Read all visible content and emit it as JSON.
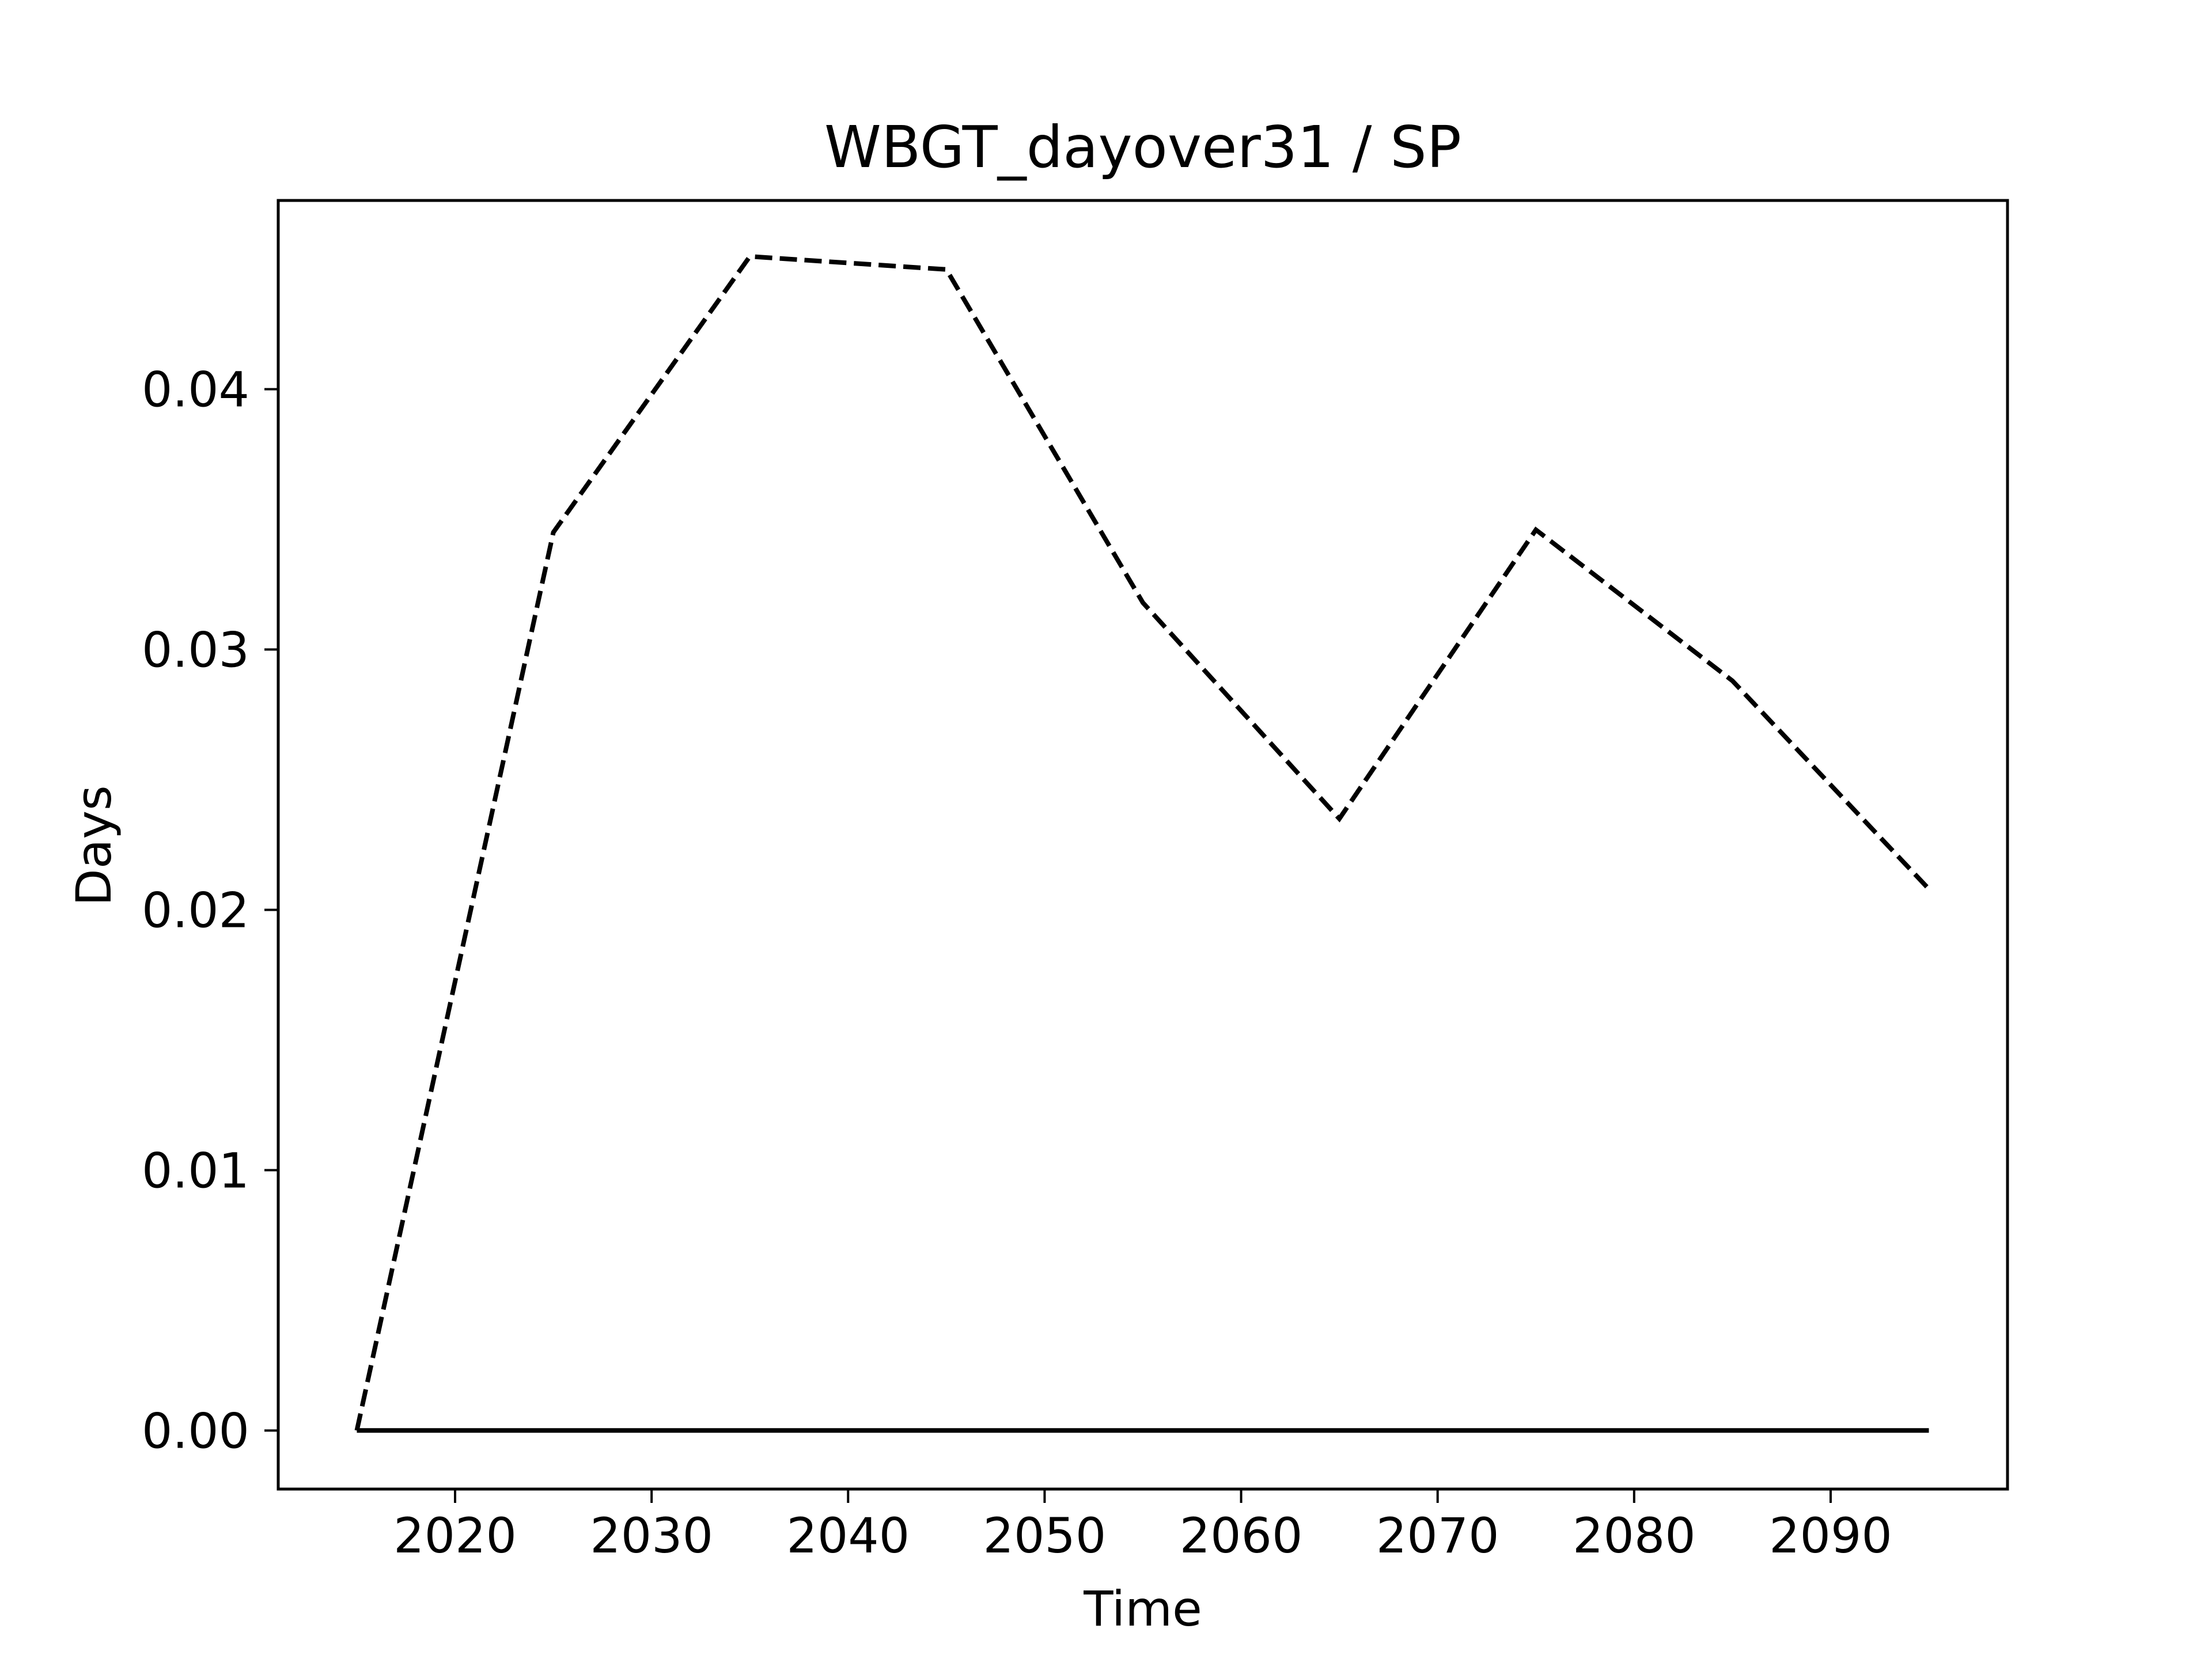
{
  "chart_data": {
    "type": "line",
    "title": "WBGT_dayover31 / SP",
    "xlabel": "Time",
    "ylabel": "Days",
    "xlim": [
      2011,
      2099
    ],
    "ylim": [
      -0.00225,
      0.04725
    ],
    "xticks": [
      2020,
      2030,
      2040,
      2050,
      2060,
      2070,
      2080,
      2090
    ],
    "xtick_labels": [
      "2020",
      "2030",
      "2040",
      "2050",
      "2060",
      "2070",
      "2080",
      "2090"
    ],
    "yticks": [
      0.0,
      0.01,
      0.02,
      0.03,
      0.04
    ],
    "ytick_labels": [
      "0.00",
      "0.01",
      "0.02",
      "0.03",
      "0.04"
    ],
    "grid": false,
    "legend": "none",
    "series": [
      {
        "style": "dashed",
        "color": "#000000",
        "x": [
          2015,
          2025,
          2035,
          2045,
          2055,
          2065,
          2075,
          2085,
          2095
        ],
        "values": [
          0.0,
          0.0345,
          0.0451,
          0.0446,
          0.0318,
          0.0235,
          0.0346,
          0.0288,
          0.0208
        ]
      },
      {
        "style": "solid",
        "color": "#000000",
        "x": [
          2015,
          2025,
          2035,
          2045,
          2055,
          2065,
          2075,
          2085,
          2095
        ],
        "values": [
          0.0,
          0.0,
          0.0,
          0.0,
          0.0,
          0.0,
          0.0,
          0.0,
          0.0
        ]
      }
    ]
  }
}
